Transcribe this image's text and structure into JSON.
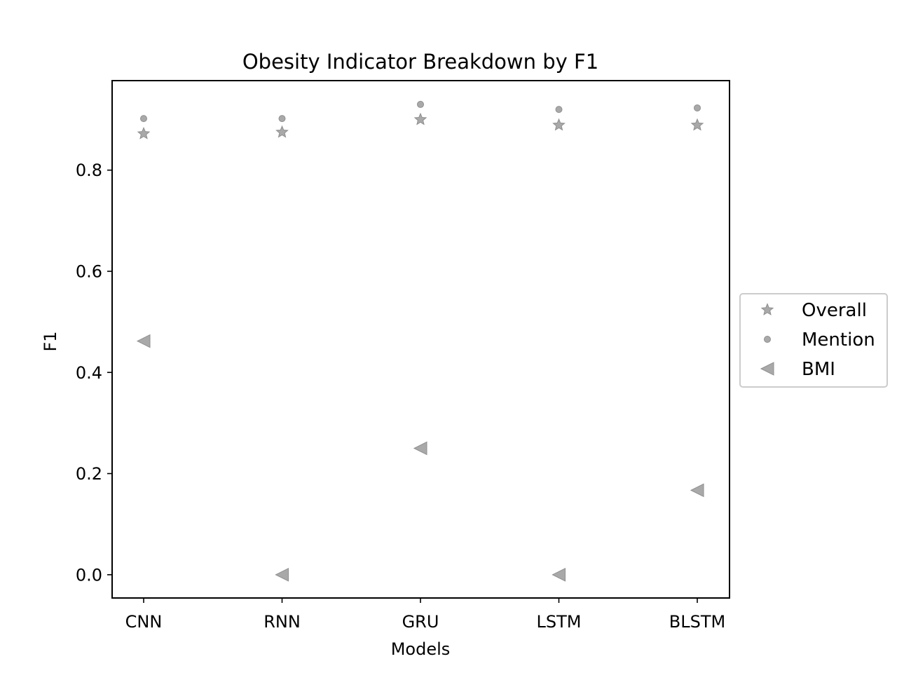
{
  "chart_data": {
    "type": "scatter",
    "title": "Obesity Indicator Breakdown by F1",
    "xlabel": "Models",
    "ylabel": "F1",
    "categories": [
      "CNN",
      "RNN",
      "GRU",
      "LSTM",
      "BLSTM"
    ],
    "ylim": [
      -0.046,
      0.977
    ],
    "yticks": [
      0.0,
      0.2,
      0.4,
      0.6,
      0.8
    ],
    "ytick_labels": [
      "0.0",
      "0.2",
      "0.4",
      "0.6",
      "0.8"
    ],
    "grid": false,
    "legend_position": "center-right-outside",
    "series": [
      {
        "name": "Overall",
        "marker": "star",
        "color": "#a9a9a9",
        "values": [
          0.872,
          0.875,
          0.9,
          0.889,
          0.889
        ]
      },
      {
        "name": "Mention",
        "marker": "circle",
        "color": "#a9a9a9",
        "values": [
          0.902,
          0.902,
          0.93,
          0.92,
          0.923
        ]
      },
      {
        "name": "BMI",
        "marker": "triangle-left",
        "color": "#a9a9a9",
        "values": [
          0.462,
          0.0,
          0.25,
          0.0,
          0.167
        ]
      }
    ]
  }
}
